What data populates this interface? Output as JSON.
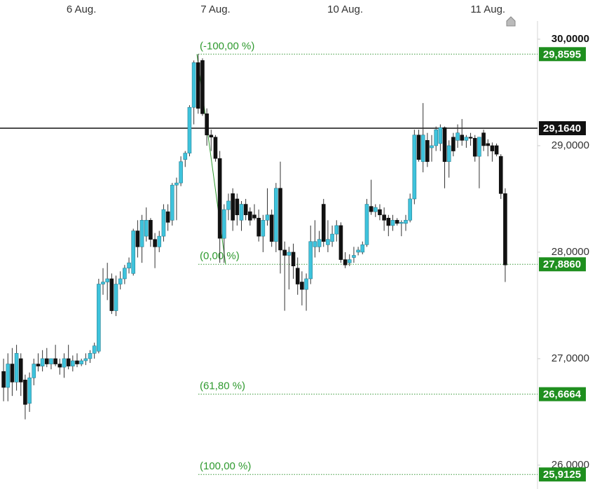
{
  "chart_data": {
    "type": "candlestick",
    "categories": [
      null,
      null,
      null,
      null,
      null,
      null,
      null,
      null,
      null,
      null,
      null,
      null,
      null,
      null,
      null,
      null,
      null,
      null,
      "6 Aug.",
      null,
      null,
      null,
      null,
      null,
      null,
      null,
      null,
      null,
      null,
      null,
      null,
      null,
      null,
      null,
      null,
      null,
      null,
      null,
      null,
      null,
      null,
      null,
      null,
      null,
      null,
      null,
      null,
      null,
      null,
      "7 Aug.",
      null,
      null,
      null,
      null,
      null,
      null,
      null,
      null,
      null,
      null,
      null,
      null,
      null,
      null,
      null,
      null,
      null,
      null,
      null,
      null,
      null,
      null,
      null,
      null,
      null,
      null,
      null,
      null,
      null,
      "10 Aug.",
      null,
      null,
      null,
      null,
      null,
      null,
      null,
      null,
      null,
      null,
      null,
      null,
      null,
      null,
      null,
      null,
      null,
      null,
      null,
      null,
      null,
      null,
      null,
      null,
      null,
      null,
      null,
      null,
      null,
      null,
      null,
      null,
      "11 Aug.",
      null,
      null,
      null,
      null
    ],
    "open": [
      26.88,
      26.73,
      26.95,
      26.78,
      27.0,
      26.8,
      26.58,
      26.82,
      26.95,
      26.93,
      27.0,
      26.95,
      27.0,
      26.95,
      26.92,
      27.0,
      26.93,
      26.98,
      26.95,
      26.98,
      27.0,
      27.05,
      27.07,
      27.7,
      27.72,
      27.75,
      27.45,
      27.7,
      27.75,
      27.85,
      27.8,
      28.2,
      28.05,
      28.15,
      28.3,
      28.12,
      28.05,
      28.15,
      28.38,
      28.3,
      28.63,
      28.65,
      28.87,
      28.93,
      29.36,
      29.78,
      29.8,
      29.3,
      29.1,
      29.08,
      28.88,
      28.13,
      28.4,
      28.55,
      28.5,
      28.3,
      28.45,
      28.38,
      28.35,
      28.32,
      28.15,
      28.3,
      28.35,
      28.1,
      28.6,
      28.02,
      27.97,
      28.0,
      27.85,
      27.72,
      27.65,
      27.75,
      28.05,
      28.05,
      28.45,
      28.07,
      28.1,
      28.17,
      28.25,
      27.93,
      27.9,
      27.95,
      28.0,
      28.0,
      28.07,
      28.43,
      28.38,
      28.4,
      28.35,
      28.32,
      28.25,
      28.3,
      28.27,
      28.27,
      28.3,
      28.5,
      29.1,
      28.85,
      29.05,
      28.98,
      29.0,
      29.02,
      29.17,
      28.85,
      29.08,
      29.05,
      29.1,
      29.05,
      29.08,
      29.07,
      28.9,
      29.12,
      29.02,
      29.0,
      29.0,
      28.9,
      28.55
    ],
    "high": [
      27.0,
      27.05,
      27.1,
      27.13,
      27.05,
      26.85,
      26.87,
      27.0,
      27.05,
      27.08,
      27.1,
      27.0,
      27.13,
      27.0,
      27.05,
      27.13,
      27.03,
      27.05,
      27.0,
      27.05,
      27.08,
      27.15,
      27.75,
      27.85,
      27.9,
      27.8,
      27.78,
      27.82,
      27.88,
      27.95,
      28.22,
      28.3,
      28.35,
      28.42,
      28.32,
      28.18,
      28.2,
      28.45,
      28.45,
      28.65,
      28.7,
      28.9,
      28.95,
      29.38,
      29.8,
      29.86,
      29.82,
      29.35,
      29.15,
      29.1,
      28.95,
      28.45,
      28.55,
      28.6,
      28.55,
      28.48,
      28.5,
      28.42,
      28.45,
      28.4,
      28.35,
      28.6,
      28.4,
      28.65,
      28.85,
      28.1,
      28.05,
      28.08,
      27.95,
      27.82,
      27.8,
      28.25,
      28.3,
      28.2,
      28.5,
      28.3,
      28.25,
      28.3,
      28.28,
      28.0,
      27.98,
      28.05,
      28.05,
      28.1,
      28.5,
      28.68,
      28.45,
      28.45,
      28.42,
      28.35,
      28.35,
      28.32,
      28.3,
      28.35,
      28.55,
      29.15,
      29.15,
      29.4,
      29.12,
      29.1,
      29.18,
      29.2,
      29.18,
      29.05,
      29.12,
      29.2,
      29.25,
      29.1,
      29.12,
      29.1,
      29.05,
      29.15,
      29.06,
      29.03,
      29.02,
      28.92,
      28.6
    ],
    "low": [
      26.6,
      26.6,
      26.65,
      26.7,
      26.65,
      26.43,
      26.5,
      26.75,
      26.88,
      26.88,
      26.92,
      26.9,
      26.93,
      26.85,
      26.82,
      26.9,
      26.88,
      26.92,
      26.93,
      26.94,
      26.96,
      27.0,
      27.05,
      27.6,
      27.55,
      27.42,
      27.4,
      27.65,
      27.7,
      27.8,
      27.78,
      27.95,
      27.9,
      28.1,
      28.05,
      27.85,
      28.0,
      28.1,
      28.2,
      28.25,
      28.3,
      28.62,
      28.8,
      28.9,
      29.2,
      29.3,
      29.28,
      29.0,
      28.95,
      28.85,
      27.9,
      27.9,
      28.3,
      28.2,
      28.25,
      28.2,
      28.3,
      28.25,
      28.3,
      28.1,
      28.0,
      28.25,
      28.05,
      28.0,
      27.8,
      27.45,
      27.65,
      27.75,
      27.6,
      27.5,
      27.45,
      27.7,
      27.95,
      28.0,
      28.05,
      28.0,
      28.05,
      28.1,
      27.9,
      27.85,
      27.87,
      27.9,
      27.97,
      27.98,
      28.05,
      28.35,
      28.33,
      28.3,
      28.2,
      28.15,
      28.2,
      28.25,
      28.15,
      28.2,
      28.28,
      28.45,
      28.85,
      28.75,
      28.8,
      28.85,
      28.95,
      28.95,
      28.6,
      28.7,
      28.9,
      28.98,
      29.0,
      28.98,
      29.0,
      28.85,
      28.6,
      28.95,
      28.9,
      28.85,
      28.9,
      28.5,
      27.72
    ],
    "close": [
      26.73,
      26.95,
      26.78,
      27.05,
      26.78,
      26.57,
      26.82,
      26.95,
      26.93,
      27.0,
      26.95,
      27.0,
      26.95,
      26.92,
      27.0,
      26.93,
      26.98,
      26.95,
      26.98,
      27.0,
      27.05,
      27.12,
      27.7,
      27.72,
      27.75,
      27.45,
      27.7,
      27.75,
      27.85,
      27.9,
      28.2,
      28.05,
      28.3,
      28.3,
      28.12,
      28.05,
      28.15,
      28.4,
      28.28,
      28.63,
      28.65,
      28.85,
      28.93,
      29.36,
      29.78,
      29.35,
      29.3,
      29.1,
      29.08,
      28.88,
      28.13,
      28.4,
      28.48,
      28.3,
      28.35,
      28.45,
      28.35,
      28.3,
      28.32,
      28.15,
      28.3,
      28.35,
      28.1,
      28.6,
      28.02,
      27.97,
      28.0,
      27.87,
      27.7,
      27.65,
      27.75,
      28.1,
      28.1,
      28.12,
      28.1,
      28.12,
      28.17,
      28.25,
      27.93,
      27.88,
      27.93,
      27.97,
      28.02,
      28.07,
      28.45,
      28.38,
      28.42,
      28.35,
      28.3,
      28.25,
      28.3,
      28.27,
      28.28,
      28.3,
      28.5,
      29.1,
      28.87,
      29.1,
      28.85,
      29.0,
      29.15,
      29.17,
      28.85,
      29.0,
      28.95,
      29.12,
      29.05,
      29.08,
      29.07,
      28.9,
      29.08,
      29.0,
      29.0,
      28.95,
      28.92,
      28.55,
      27.88
    ],
    "up_color": "#3ec3dc",
    "down_color": "#111111",
    "ylim": [
      25.776,
      30.368
    ],
    "yticks": [
      {
        "value": 26,
        "label": "26,0000"
      },
      {
        "value": 27,
        "label": "27,0000"
      },
      {
        "value": 28,
        "label": "28,0000"
      },
      {
        "value": 29,
        "label": "29,0000"
      },
      {
        "value": 30,
        "label": "30,0000"
      }
    ],
    "hline": {
      "value": 29.164,
      "label": "29,1640"
    },
    "fib_levels": [
      {
        "name": "(-100,00 %)",
        "value": 29.8595,
        "value_label": "29,8595"
      },
      {
        "name": "(0,00 %)",
        "value": 27.886,
        "value_label": "27,8860"
      },
      {
        "name": "(61,80 %)",
        "value": 26.6664,
        "value_label": "26,6664"
      },
      {
        "name": "(100,00 %)",
        "value": 25.9125,
        "value_label": "25,9125"
      }
    ]
  }
}
